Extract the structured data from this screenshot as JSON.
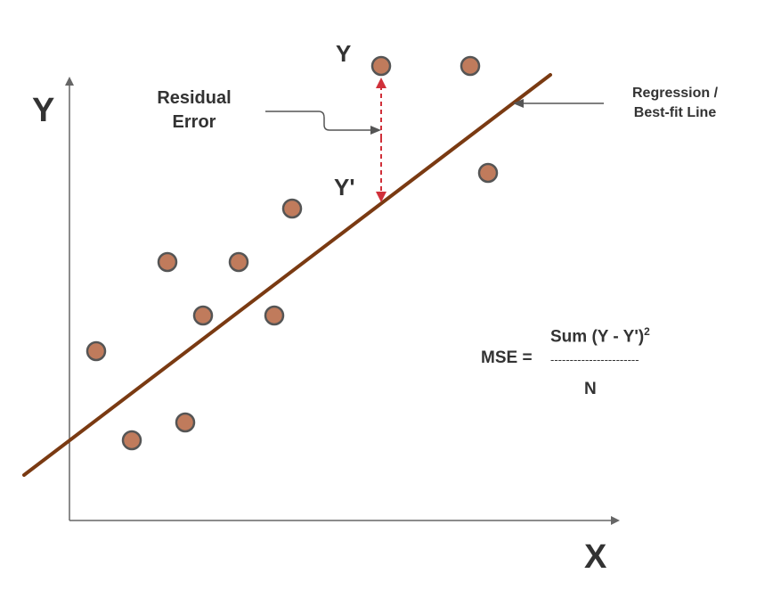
{
  "axes": {
    "y_label": "Y",
    "x_label": "X",
    "color": "#666666"
  },
  "points": {
    "fill": "#c07b5c",
    "stroke": "#555555"
  },
  "regression_line": {
    "color": "#7a3a12"
  },
  "residual": {
    "color": "#d0303a",
    "observed_label": "Y",
    "predicted_label": "Y'"
  },
  "annotations": {
    "residual_error_line1": "Residual",
    "residual_error_line2": "Error",
    "regression_line1": "Regression /",
    "regression_line2": "Best-fit Line",
    "arrow_color": "#555555"
  },
  "formula": {
    "lhs": "MSE =",
    "numerator": "Sum (Y - Y')",
    "exponent": "2",
    "fraction_bar": "-----------------------",
    "denominator": "N"
  }
}
